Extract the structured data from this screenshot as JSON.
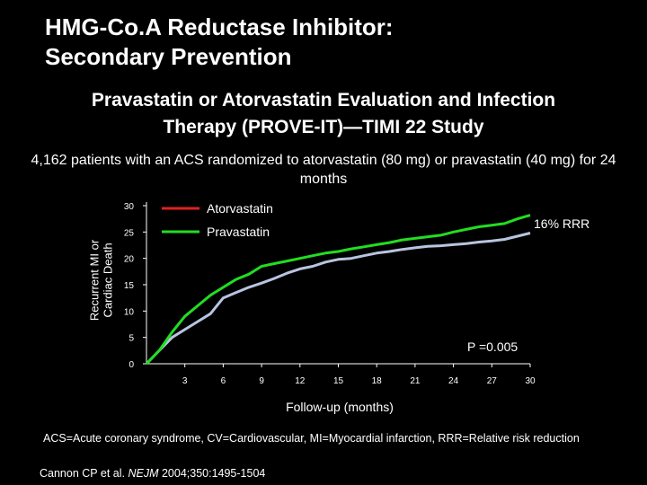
{
  "slide": {
    "title_line1": "HMG-Co.A Reductase Inhibitor:",
    "title_line2": "Secondary Prevention",
    "subtitle_line1": "Pravastatin or Atorvastatin Evaluation and Infection",
    "subtitle_line2": "Therapy (PROVE-IT)—TIMI 22 Study",
    "description": "4,162 patients with an ACS randomized to atorvastatin (80 mg) or pravastatin (40 mg) for 24 months",
    "footnote": "ACS=Acute coronary syndrome, CV=Cardiovascular, MI=Myocardial infarction, RRR=Relative risk reduction",
    "citation_author": "Cannon CP et al. ",
    "citation_journal": "NEJM",
    "citation_rest": " 2004;350:1495-1504"
  },
  "chart_data": {
    "type": "line",
    "xlabel": "Follow-up (months)",
    "ylabel": "Recurrent MI or Cardiac Death",
    "xlim": [
      0,
      30
    ],
    "ylim": [
      0,
      30
    ],
    "x_ticks": [
      3,
      6,
      9,
      12,
      15,
      18,
      21,
      24,
      27,
      30
    ],
    "y_ticks": [
      0,
      5,
      10,
      15,
      20,
      25,
      30
    ],
    "legend_position": "top-left",
    "annotations": {
      "rrr": "16% RRR",
      "p_value": "P =0.005"
    },
    "series": [
      {
        "name": "Atorvastatin",
        "color": "#e02020",
        "legend_only": true,
        "x": [],
        "y": []
      },
      {
        "name": "Pravastatin",
        "color": "#22dd22",
        "x": [
          0,
          1,
          2,
          3,
          4,
          5,
          6,
          7,
          8,
          9,
          10,
          11,
          12,
          13,
          14,
          15,
          16,
          17,
          18,
          19,
          20,
          21,
          22,
          23,
          24,
          25,
          26,
          27,
          28,
          29,
          30
        ],
        "y": [
          0,
          2.5,
          6,
          9,
          11,
          13,
          14.5,
          16,
          17,
          18.5,
          19,
          19.5,
          20,
          20.5,
          21,
          21.3,
          21.8,
          22.2,
          22.6,
          23,
          23.5,
          23.8,
          24.1,
          24.4,
          25,
          25.5,
          26,
          26.3,
          26.6,
          27.5,
          28.2
        ]
      },
      {
        "name": "",
        "color": "#b8c4e0",
        "x": [
          0,
          1,
          2,
          3,
          4,
          5,
          6,
          7,
          8,
          9,
          10,
          11,
          12,
          13,
          14,
          15,
          16,
          17,
          18,
          19,
          20,
          21,
          22,
          23,
          24,
          25,
          26,
          27,
          28,
          29,
          30
        ],
        "y": [
          0,
          2.5,
          5,
          6.5,
          8,
          9.5,
          12.5,
          13.5,
          14.5,
          15.3,
          16.2,
          17.2,
          18,
          18.5,
          19.3,
          19.8,
          20,
          20.5,
          21,
          21.3,
          21.7,
          22,
          22.3,
          22.4,
          22.6,
          22.8,
          23.1,
          23.3,
          23.6,
          24.2,
          24.8
        ]
      }
    ]
  }
}
